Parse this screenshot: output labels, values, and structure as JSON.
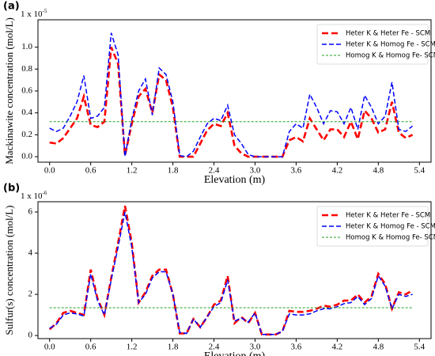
{
  "chart_data": [
    {
      "type": "line",
      "panel_label": "(a)",
      "xlabel": "Elevation (m)",
      "ylabel": "Mackinawite  concentration (mol/L)",
      "offset_label": "1 x 10",
      "offset_exponent": "-5",
      "legend": "upper right",
      "xlim": [
        -0.17,
        5.57
      ],
      "ylim": [
        -0.05,
        1.25
      ],
      "xticks": [
        {
          "value": 0,
          "label": "0.0"
        },
        0.6,
        1.2,
        1.8,
        2.4,
        {
          "value": 3,
          "label": "3.0"
        },
        3.6,
        4.2,
        4.8,
        5.4
      ],
      "yticks": [
        {
          "value": 0,
          "label": "0.0"
        },
        0.2,
        0.4,
        0.6,
        0.8,
        {
          "value": 1,
          "label": "1.0"
        }
      ],
      "series": [
        {
          "name": "Heter K & Heter Fe - SCM",
          "color": "#ff0000",
          "dash": "dashed-thick",
          "x": [
            0,
            0.1,
            0.2,
            0.3,
            0.4,
            0.5,
            0.6,
            0.7,
            0.8,
            0.9,
            1.0,
            1.1,
            1.2,
            1.3,
            1.4,
            1.5,
            1.6,
            1.7,
            1.8,
            1.9,
            2.0,
            2.1,
            2.2,
            2.3,
            2.4,
            2.5,
            2.6,
            2.7,
            2.8,
            2.9,
            3.0,
            3.1,
            3.2,
            3.3,
            3.4,
            3.5,
            3.6,
            3.7,
            3.8,
            3.9,
            4.0,
            4.1,
            4.2,
            4.3,
            4.4,
            4.5,
            4.6,
            4.7,
            4.8,
            4.9,
            5.0,
            5.1,
            5.2,
            5.3
          ],
          "values": [
            0.13,
            0.12,
            0.17,
            0.26,
            0.35,
            0.55,
            0.29,
            0.27,
            0.32,
            1.0,
            0.85,
            0.01,
            0.3,
            0.55,
            0.62,
            0.4,
            0.75,
            0.7,
            0.45,
            0.0,
            0.0,
            0.0,
            0.12,
            0.24,
            0.3,
            0.28,
            0.4,
            0.1,
            0.03,
            0.0,
            0.0,
            0.0,
            0.0,
            0.0,
            0.0,
            0.15,
            0.18,
            0.14,
            0.35,
            0.25,
            0.15,
            0.25,
            0.25,
            0.18,
            0.32,
            0.16,
            0.42,
            0.35,
            0.22,
            0.25,
            0.5,
            0.22,
            0.17,
            0.2
          ]
        },
        {
          "name": "Heter K & Homog Fe - SCM",
          "color": "#0000ff",
          "dash": "dashed",
          "x": [
            0,
            0.1,
            0.2,
            0.3,
            0.4,
            0.5,
            0.6,
            0.7,
            0.8,
            0.9,
            1.0,
            1.1,
            1.2,
            1.3,
            1.4,
            1.5,
            1.6,
            1.7,
            1.8,
            1.9,
            2.0,
            2.1,
            2.2,
            2.3,
            2.4,
            2.5,
            2.6,
            2.7,
            2.8,
            2.9,
            3.0,
            3.1,
            3.2,
            3.3,
            3.4,
            3.5,
            3.6,
            3.7,
            3.8,
            3.9,
            4.0,
            4.1,
            4.2,
            4.3,
            4.4,
            4.5,
            4.6,
            4.7,
            4.8,
            4.9,
            5.0,
            5.1,
            5.2,
            5.3
          ],
          "values": [
            0.26,
            0.23,
            0.26,
            0.37,
            0.5,
            0.74,
            0.35,
            0.37,
            0.45,
            1.13,
            0.93,
            0.0,
            0.34,
            0.6,
            0.71,
            0.38,
            0.81,
            0.75,
            0.5,
            0.01,
            0.0,
            0.05,
            0.18,
            0.3,
            0.35,
            0.33,
            0.47,
            0.2,
            0.12,
            0.02,
            0.0,
            0.0,
            0.0,
            0.0,
            0.0,
            0.23,
            0.3,
            0.26,
            0.57,
            0.45,
            0.3,
            0.42,
            0.41,
            0.3,
            0.45,
            0.25,
            0.56,
            0.45,
            0.3,
            0.37,
            0.68,
            0.25,
            0.23,
            0.28
          ]
        },
        {
          "name": "Homog K & Homog Fe- SCM",
          "color": "#22a022",
          "dash": "dashed-fine",
          "x": [
            0,
            5.3
          ],
          "values": [
            0.32,
            0.32
          ]
        }
      ]
    },
    {
      "type": "line",
      "panel_label": "(b)",
      "xlabel": "Elevation (m)",
      "ylabel": "Sulfur(s)  concentration (mol/L)",
      "offset_label": "1 x 10",
      "offset_exponent": "-6",
      "legend": "upper right",
      "xlim": [
        -0.17,
        5.57
      ],
      "ylim": [
        -0.15,
        6.5
      ],
      "xticks": [
        {
          "value": 0,
          "label": "0.0"
        },
        0.6,
        1.2,
        1.8,
        2.4,
        {
          "value": 3,
          "label": "3.0"
        },
        3.6,
        4.2,
        4.8,
        5.4
      ],
      "yticks": [
        0,
        2,
        4,
        6
      ],
      "series": [
        {
          "name": "Heter K & Heter Fe - SCM",
          "color": "#ff0000",
          "dash": "dashed-thick",
          "x": [
            0,
            0.1,
            0.2,
            0.3,
            0.4,
            0.5,
            0.6,
            0.7,
            0.8,
            0.9,
            1.0,
            1.1,
            1.2,
            1.3,
            1.4,
            1.5,
            1.6,
            1.7,
            1.8,
            1.9,
            2.0,
            2.1,
            2.2,
            2.3,
            2.4,
            2.5,
            2.6,
            2.7,
            2.8,
            2.9,
            3.0,
            3.1,
            3.2,
            3.3,
            3.4,
            3.5,
            3.6,
            3.7,
            3.8,
            3.9,
            4.0,
            4.1,
            4.2,
            4.3,
            4.4,
            4.5,
            4.6,
            4.7,
            4.8,
            4.9,
            5.0,
            5.1,
            5.2,
            5.3
          ],
          "values": [
            0.3,
            0.6,
            1.1,
            1.2,
            1.1,
            1.0,
            3.2,
            1.8,
            1.0,
            2.8,
            4.5,
            6.3,
            4.5,
            1.6,
            2.1,
            2.9,
            3.2,
            3.2,
            2.0,
            0.1,
            0.1,
            0.8,
            0.4,
            0.9,
            1.5,
            1.7,
            2.9,
            0.6,
            0.9,
            0.6,
            1.1,
            0.05,
            0.05,
            0.05,
            0.2,
            1.2,
            1.15,
            1.15,
            1.2,
            1.3,
            1.45,
            1.4,
            1.5,
            1.7,
            1.7,
            2.0,
            1.6,
            1.9,
            3.0,
            2.5,
            1.3,
            2.1,
            2.0,
            2.2
          ]
        },
        {
          "name": "Heter K & Homog Fe - SCM",
          "color": "#0000ff",
          "dash": "dashed",
          "x": [
            0,
            0.1,
            0.2,
            0.3,
            0.4,
            0.5,
            0.6,
            0.7,
            0.8,
            0.9,
            1.0,
            1.1,
            1.2,
            1.3,
            1.4,
            1.5,
            1.6,
            1.7,
            1.8,
            1.9,
            2.0,
            2.1,
            2.2,
            2.3,
            2.4,
            2.5,
            2.6,
            2.7,
            2.8,
            2.9,
            3.0,
            3.1,
            3.2,
            3.3,
            3.4,
            3.5,
            3.6,
            3.7,
            3.8,
            3.9,
            4.0,
            4.1,
            4.2,
            4.3,
            4.4,
            4.5,
            4.6,
            4.7,
            4.8,
            4.9,
            5.0,
            5.1,
            5.2,
            5.3
          ],
          "values": [
            0.35,
            0.55,
            1.0,
            1.1,
            1.05,
            0.95,
            3.0,
            1.7,
            1.0,
            2.7,
            4.3,
            6.0,
            4.3,
            1.6,
            2.0,
            2.8,
            3.1,
            3.1,
            2.0,
            0.15,
            0.1,
            0.8,
            0.4,
            0.9,
            1.4,
            1.6,
            2.7,
            0.7,
            0.85,
            0.65,
            1.1,
            0.05,
            0.05,
            0.05,
            0.2,
            1.05,
            1.0,
            1.0,
            1.05,
            1.2,
            1.3,
            1.3,
            1.4,
            1.55,
            1.6,
            1.9,
            1.5,
            1.8,
            2.9,
            2.4,
            1.3,
            2.0,
            1.9,
            2.0
          ]
        },
        {
          "name": "Homog K & Homog Fe- SCM",
          "color": "#22a022",
          "dash": "dashed-fine",
          "x": [
            0,
            5.3
          ],
          "values": [
            1.35,
            1.35
          ]
        }
      ]
    }
  ]
}
